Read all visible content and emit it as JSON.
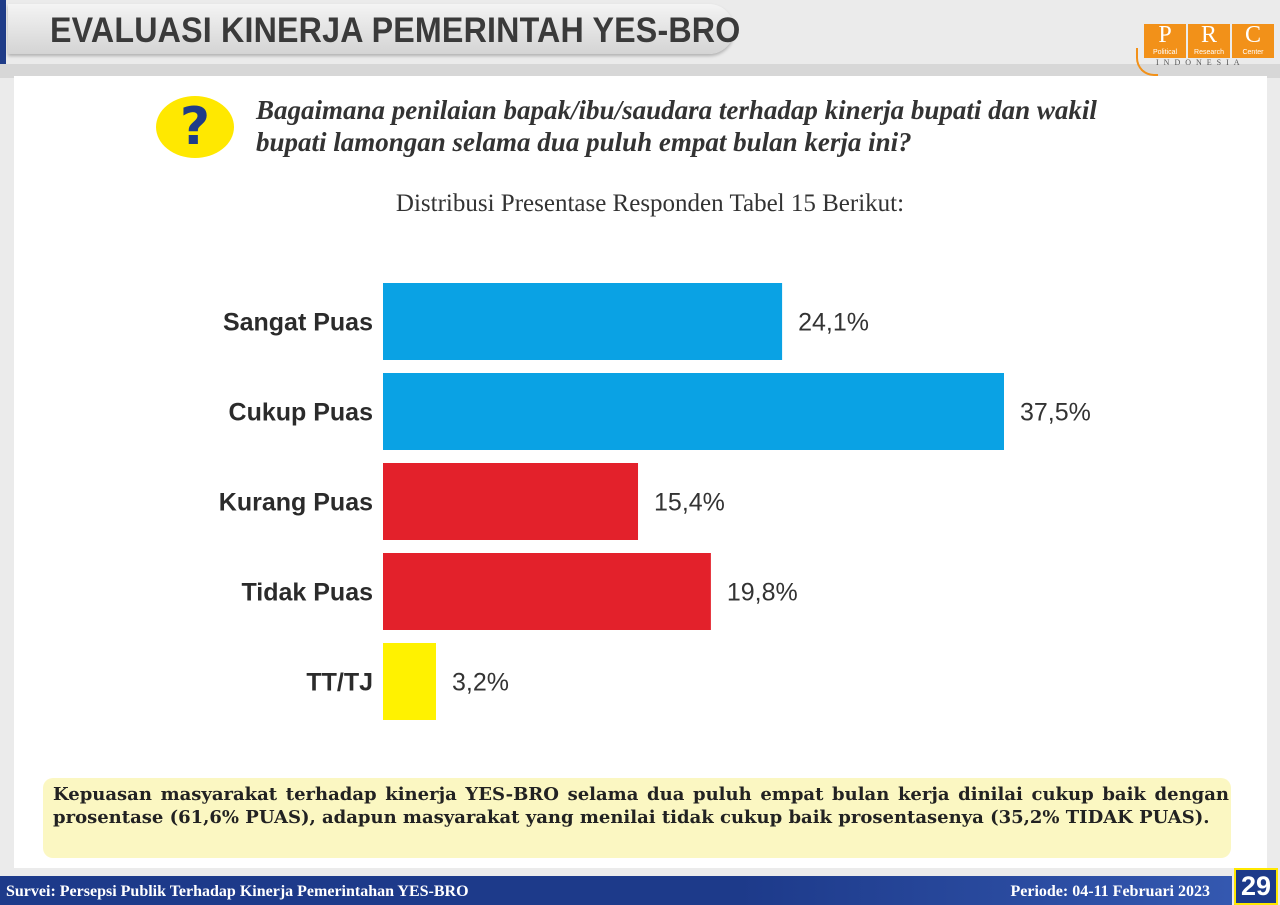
{
  "header": {
    "title": "EVALUASI KINERJA PEMERINTAH YES-BRO"
  },
  "logo": {
    "letters": [
      "P",
      "R",
      "C"
    ],
    "words": [
      "Political",
      "Research",
      "Center"
    ],
    "subtitle": "INDONESIA",
    "color": "#f29119"
  },
  "question": {
    "icon": "question-mark-icon",
    "symbol": "?",
    "text": "Bagaimana penilaian bapak/ibu/saudara terhadap kinerja bupati dan wakil bupati lamongan selama dua puluh empat bulan kerja ini?"
  },
  "subtitle": "Distribusi Presentase Responden Tabel 15 Berikut:",
  "chart_data": {
    "type": "bar",
    "orientation": "horizontal",
    "categories": [
      "Sangat Puas",
      "Cukup Puas",
      "Kurang Puas",
      "Tidak Puas",
      "TT/TJ"
    ],
    "values": [
      24.1,
      37.5,
      15.4,
      19.8,
      3.2
    ],
    "value_labels": [
      "24,1%",
      "37,5%",
      "15,4%",
      "19,8%",
      "3,2%"
    ],
    "colors": [
      "#0aa2e4",
      "#0aa2e4",
      "#e3212b",
      "#e3212b",
      "#fff200"
    ],
    "xlim": [
      0,
      37.5
    ],
    "grid": false
  },
  "conclusion": "Kepuasan masyarakat terhadap kinerja YES-BRO selama dua puluh empat bulan kerja dinilai cukup baik dengan prosentase (61,6% PUAS), adapun masyarakat yang menilai tidak cukup baik prosentasenya (35,2% TIDAK PUAS).",
  "footer": {
    "left": "Survei: Persepsi Publik Terhadap Kinerja Pemerintahan YES-BRO",
    "right": "Periode: 04-11 Februari 2023",
    "page": "29"
  }
}
